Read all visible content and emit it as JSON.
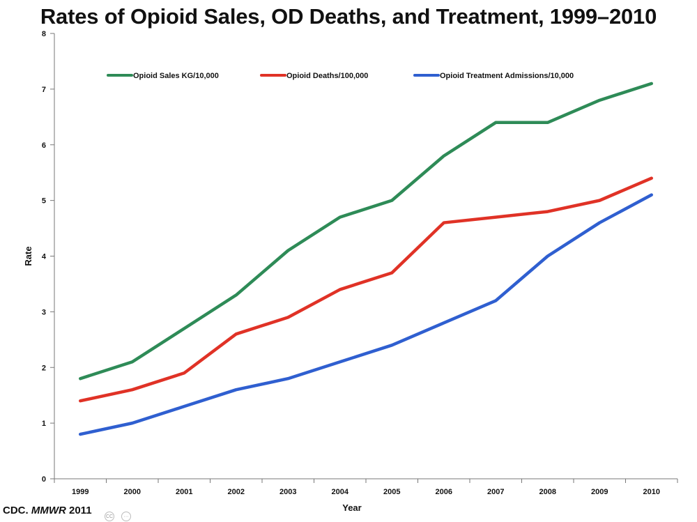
{
  "chart_data": {
    "type": "line",
    "title": "Rates of Opioid Sales, OD Deaths, and Treatment, 1999–2010",
    "xlabel": "Year",
    "ylabel": "Rate",
    "ylim": [
      0,
      8
    ],
    "yticks": [
      0,
      1,
      2,
      3,
      4,
      5,
      6,
      7,
      8
    ],
    "categories": [
      "1999",
      "2000",
      "2001",
      "2002",
      "2003",
      "2004",
      "2005",
      "2006",
      "2007",
      "2008",
      "2009",
      "2010"
    ],
    "grid": false,
    "legend_position": "top",
    "series": [
      {
        "name": "Opioid Sales KG/10,000",
        "color": "#2e8b57",
        "values": [
          1.8,
          2.1,
          2.7,
          3.3,
          4.1,
          4.7,
          5.0,
          5.8,
          6.4,
          6.4,
          6.8,
          7.1
        ]
      },
      {
        "name": "Opioid Deaths/100,000",
        "color": "#e03226",
        "values": [
          1.4,
          1.6,
          1.9,
          2.6,
          2.9,
          3.4,
          3.7,
          4.6,
          4.7,
          4.8,
          5.0,
          5.4
        ]
      },
      {
        "name": "Opioid Treatment Admissions/10,000",
        "color": "#2f5fd0",
        "values": [
          0.8,
          1.0,
          1.3,
          1.6,
          1.8,
          2.1,
          2.4,
          2.8,
          3.2,
          4.0,
          4.6,
          5.1
        ]
      }
    ]
  },
  "source": {
    "prefix": "CDC. ",
    "journal": "MMWR",
    "year": " 2011"
  },
  "overlay": {
    "cc_label": "CC"
  }
}
